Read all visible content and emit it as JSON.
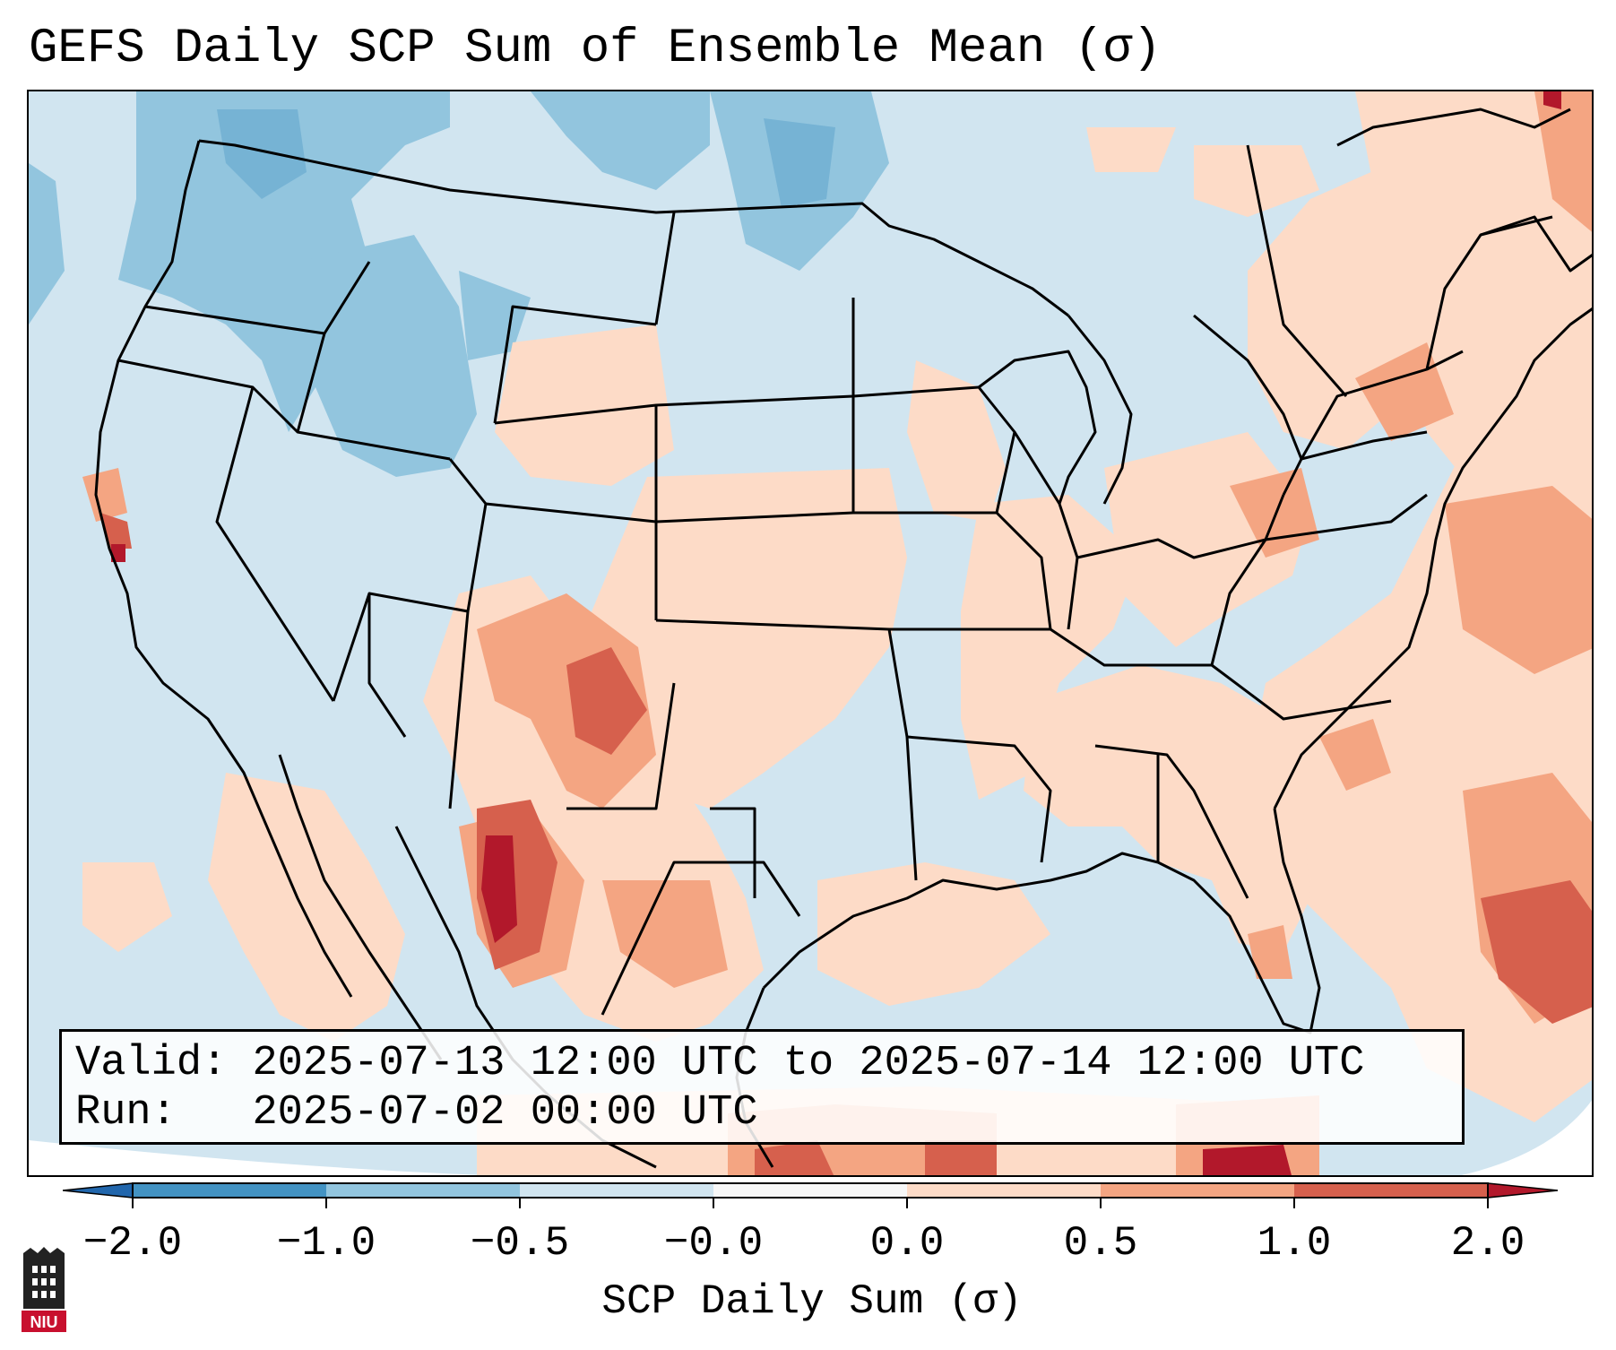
{
  "title": "GEFS Daily SCP Sum of Ensemble Mean (σ)",
  "info": {
    "valid_label": "Valid:",
    "valid_value": "2025-07-13 12:00 UTC to 2025-07-14 12:00 UTC",
    "run_label": "Run:",
    "run_value": "2025-07-02 00:00 UTC"
  },
  "colorbar": {
    "label": "SCP Daily Sum (σ)",
    "ticks": [
      "−2.0",
      "−1.0",
      "−0.5",
      "−0.0",
      "0.0",
      "0.5",
      "1.0",
      "2.0"
    ],
    "colors": {
      "under": "#2166ac",
      "bins": [
        "#4393c3",
        "#92c5de",
        "#d1e5f0",
        "#f7f7f7",
        "#fddbc7",
        "#f4a582",
        "#d6604d"
      ],
      "over": "#b2182b"
    }
  },
  "map": {
    "ocean_color": "#d1e5f0",
    "land_default": "#d1e5f0",
    "border_color": "#000000",
    "regions_description_omitted": true
  },
  "logo": {
    "text": "NIU",
    "color": "#c8102e"
  }
}
